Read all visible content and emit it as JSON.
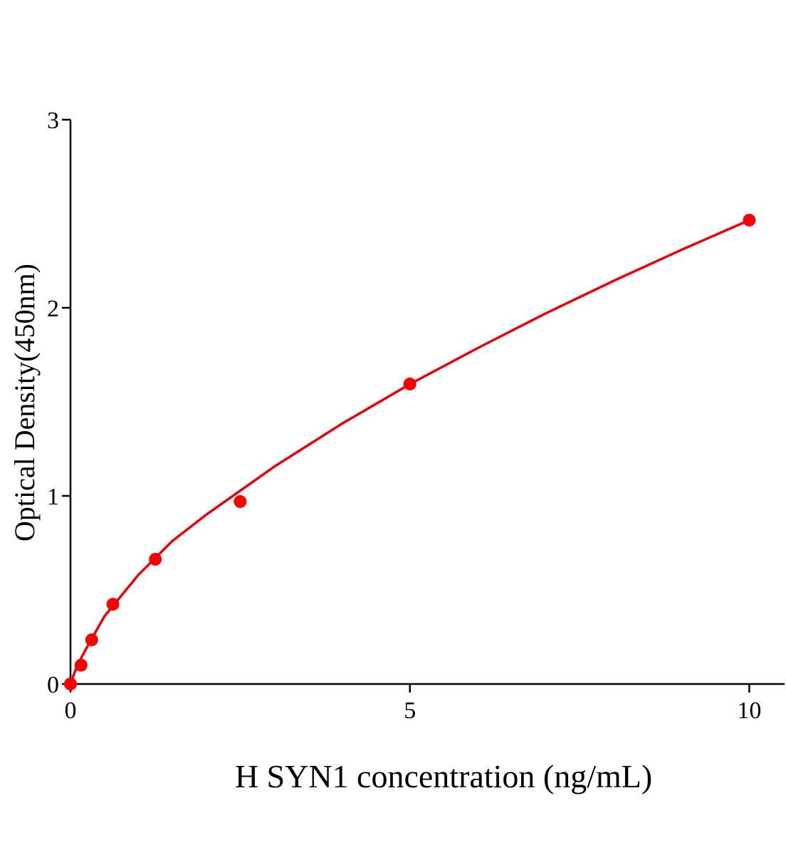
{
  "chart_data": {
    "type": "scatter",
    "x_label": "H SYN1 concentration (ng/mL)",
    "y_label": "Optical Density(450nm)",
    "xlim": [
      0,
      10.52
    ],
    "xticks": [
      0,
      5,
      10
    ],
    "ylim": [
      0,
      3
    ],
    "yticks": [
      0,
      1,
      2,
      3
    ],
    "grid": false,
    "series": [
      {
        "style": "markers",
        "color": "#ff0000",
        "x": [
          0,
          0.156,
          0.3125,
          0.625,
          1.25,
          2.5,
          5,
          10
        ],
        "values": [
          0,
          0.1,
          0.235,
          0.424,
          0.663,
          0.97,
          1.595,
          2.466
        ]
      },
      {
        "style": "line",
        "color": "#e8000b",
        "x": [
          0,
          0.1,
          0.25,
          0.5,
          1,
          1.5,
          2,
          3,
          4,
          5,
          6,
          7,
          8,
          9,
          10
        ],
        "values": [
          0,
          0.1,
          0.2,
          0.36,
          0.58,
          0.76,
          0.9,
          1.155,
          1.384,
          1.594,
          1.786,
          1.97,
          2.143,
          2.308,
          2.466
        ]
      }
    ]
  }
}
